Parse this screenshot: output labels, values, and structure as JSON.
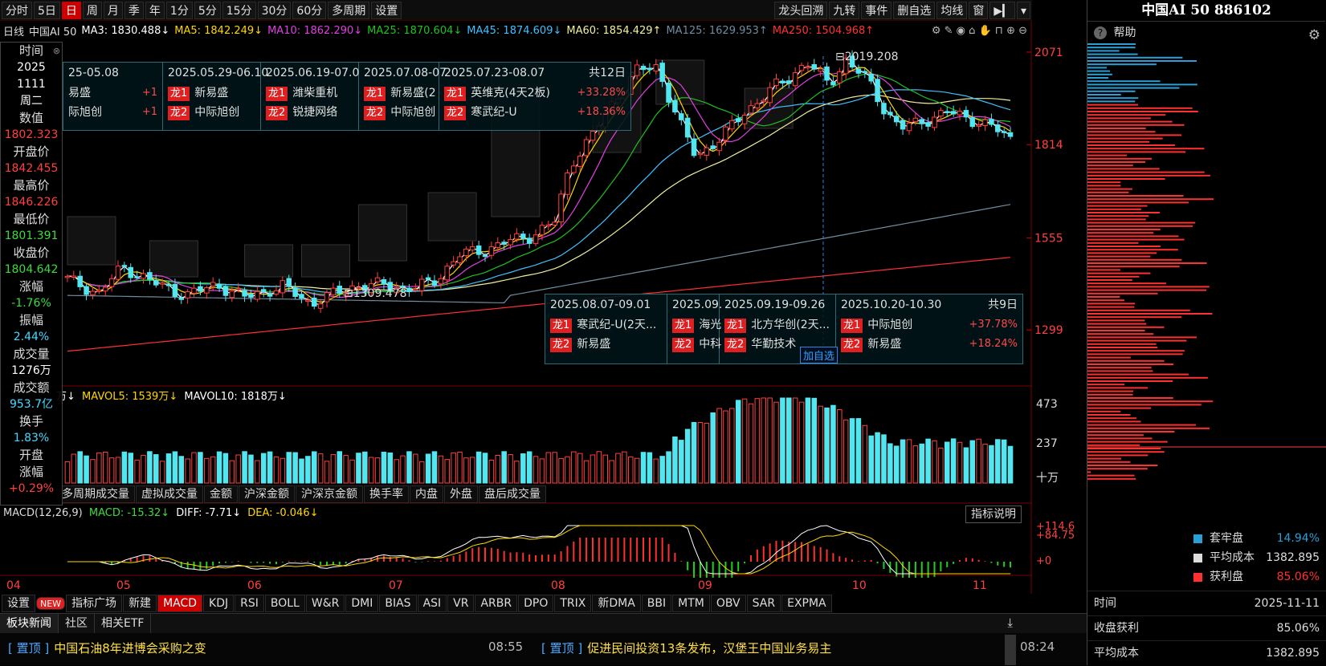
{
  "toolbar": {
    "left": [
      "分时",
      "5日",
      "日",
      "周",
      "月",
      "季",
      "年",
      "1分",
      "5分",
      "15分",
      "30分",
      "60分",
      "多周期",
      "设置"
    ],
    "active": "日",
    "right": [
      "龙头回溯",
      "九转",
      "事件",
      "删自选",
      "均线",
      "窗"
    ]
  },
  "ma_line": {
    "period": "日线",
    "name": "中国AI 50",
    "items": [
      {
        "text": "MA3: 1830.488↓",
        "color": "#ffffff"
      },
      {
        "text": "MA5: 1842.249↓",
        "color": "#ffd700"
      },
      {
        "text": "MA10: 1862.290↓",
        "color": "#e040e0"
      },
      {
        "text": "MA25: 1870.604↓",
        "color": "#20c020"
      },
      {
        "text": "MA45: 1874.609↓",
        "color": "#40c0ff"
      },
      {
        "text": "MA60: 1854.429↑",
        "color": "#f0f0a0"
      },
      {
        "text": "MA125: 1629.953↑",
        "color": "#6f8ca0"
      },
      {
        "text": "MA250: 1504.968↑",
        "color": "#ff3030"
      }
    ]
  },
  "info": {
    "time_label": "时间",
    "year": "2025",
    "date": "1111",
    "weekday": "周二",
    "value_label": "数值",
    "value": "1802.323",
    "open_label": "开盘价",
    "open": "1842.455",
    "high_label": "最高价",
    "high": "1846.226",
    "low_label": "最低价",
    "low": "1801.391",
    "close_label": "收盘价",
    "close": "1804.642",
    "chg_label": "涨幅",
    "chg": "-1.76%",
    "amp_label": "振幅",
    "amp": "2.44%",
    "vol_label": "成交量",
    "vol": "1276万",
    "amt_label": "成交额",
    "amt": "953.7亿",
    "turn_label": "换手",
    "turn": "1.83%",
    "open_chg_label1": "开盘",
    "open_chg_label2": "涨幅",
    "open_chg": "+0.29%"
  },
  "price_axis": [
    "2071",
    "1814",
    "1555",
    "1299"
  ],
  "annotations": {
    "high": "2019.208",
    "low": "1309.478",
    "add_fav": "加自选"
  },
  "hot_top": {
    "cols": [
      {
        "date": "25-05.08",
        "r1": "易盛",
        "p1": "+1",
        "r2": "际旭创",
        "p2": "+1"
      },
      {
        "date": "2025.05.29-06.10",
        "r1": "新易盛",
        "r2": "中际旭创"
      },
      {
        "date": "2025.06.19-07.0",
        "r1": "潍柴重机",
        "r2": "锐捷网络"
      },
      {
        "date": "2025.07.08-07",
        "r1": "新易盛(2",
        "r2": "中际旭创"
      },
      {
        "date": "2025.07.23-08.07",
        "count": "共12日",
        "r1": "英维克(4天2板)",
        "p1": "+33.28%",
        "r2": "寒武纪-U",
        "p2": "+18.36%"
      }
    ],
    "tag1": "龙1",
    "tag2": "龙2"
  },
  "hot_bottom": {
    "cols": [
      {
        "date": "2025.08.07-09.01",
        "r1": "寒武纪-U(2天...",
        "r2": "新易盛"
      },
      {
        "date": "2025.09.",
        "r1": "海光",
        "r2": "中科"
      },
      {
        "date": "2025.09.19-09.26",
        "r1": "北方华创(2天...",
        "r2": "华勤技术"
      },
      {
        "date": "2025.10.20-10.30",
        "count": "共9日",
        "r1": "中际旭创",
        "p1": "+37.78%",
        "r2": "新易盛",
        "p2": "+18.24%"
      }
    ]
  },
  "volume": {
    "label_prefix": "万↓",
    "mavol5": "MAVOL5: 1539万↓",
    "mavol10": "MAVOL10: 1818万↓",
    "axis": [
      "473",
      "237",
      "十万"
    ]
  },
  "vol_tabs": [
    "多周期成交量",
    "虚拟成交量",
    "金额",
    "沪深金额",
    "沪深京金额",
    "换手率",
    "内盘",
    "外盘",
    "盘后成交量"
  ],
  "macd": {
    "title": "MACD(12,26,9)",
    "macd": "MACD: -15.32↓",
    "diff": "DIFF: -7.71↓",
    "dea": "DEA: -0.046↓",
    "axis": [
      "+114.6",
      "+84.75",
      "+0"
    ],
    "help": "指标说明"
  },
  "months": [
    "04",
    "05",
    "06",
    "07",
    "08",
    "09",
    "10",
    "11"
  ],
  "ind_tabs": [
    "设置",
    "NEW",
    "指标广场",
    "新建",
    "MACD",
    "KDJ",
    "RSI",
    "BOLL",
    "W&R",
    "DMI",
    "BIAS",
    "ASI",
    "VR",
    "ARBR",
    "DPO",
    "TRIX",
    "新DMA",
    "BBI",
    "MTM",
    "OBV",
    "SAR",
    "EXPMA"
  ],
  "right_panel": {
    "title": "中国AI 50 886102",
    "help": "帮助",
    "legend": [
      {
        "name": "套牢盘",
        "value": "14.94%",
        "color": "#2a9fd6"
      },
      {
        "name": "平均成本",
        "value": "1382.895",
        "color": "#dddddd"
      },
      {
        "name": "获利盘",
        "value": "85.06%",
        "color": "#ff3030"
      }
    ],
    "rows": [
      {
        "k": "时间",
        "v": "2025-11-11"
      },
      {
        "k": "收盘获利",
        "v": "85.06%"
      },
      {
        "k": "平均成本",
        "v": "1382.895"
      }
    ]
  },
  "news": {
    "tabs": [
      "板块新闻",
      "社区",
      "相关ETF"
    ],
    "items": [
      {
        "pin": "[ 置顶 ]",
        "title": "中国石油8年进博会采购之变",
        "time": "08:55"
      },
      {
        "pin": "[ 置顶 ]",
        "title": "促进民间投资13条发布，汉堡王中国业务易主",
        "time": "08:24"
      }
    ]
  }
}
